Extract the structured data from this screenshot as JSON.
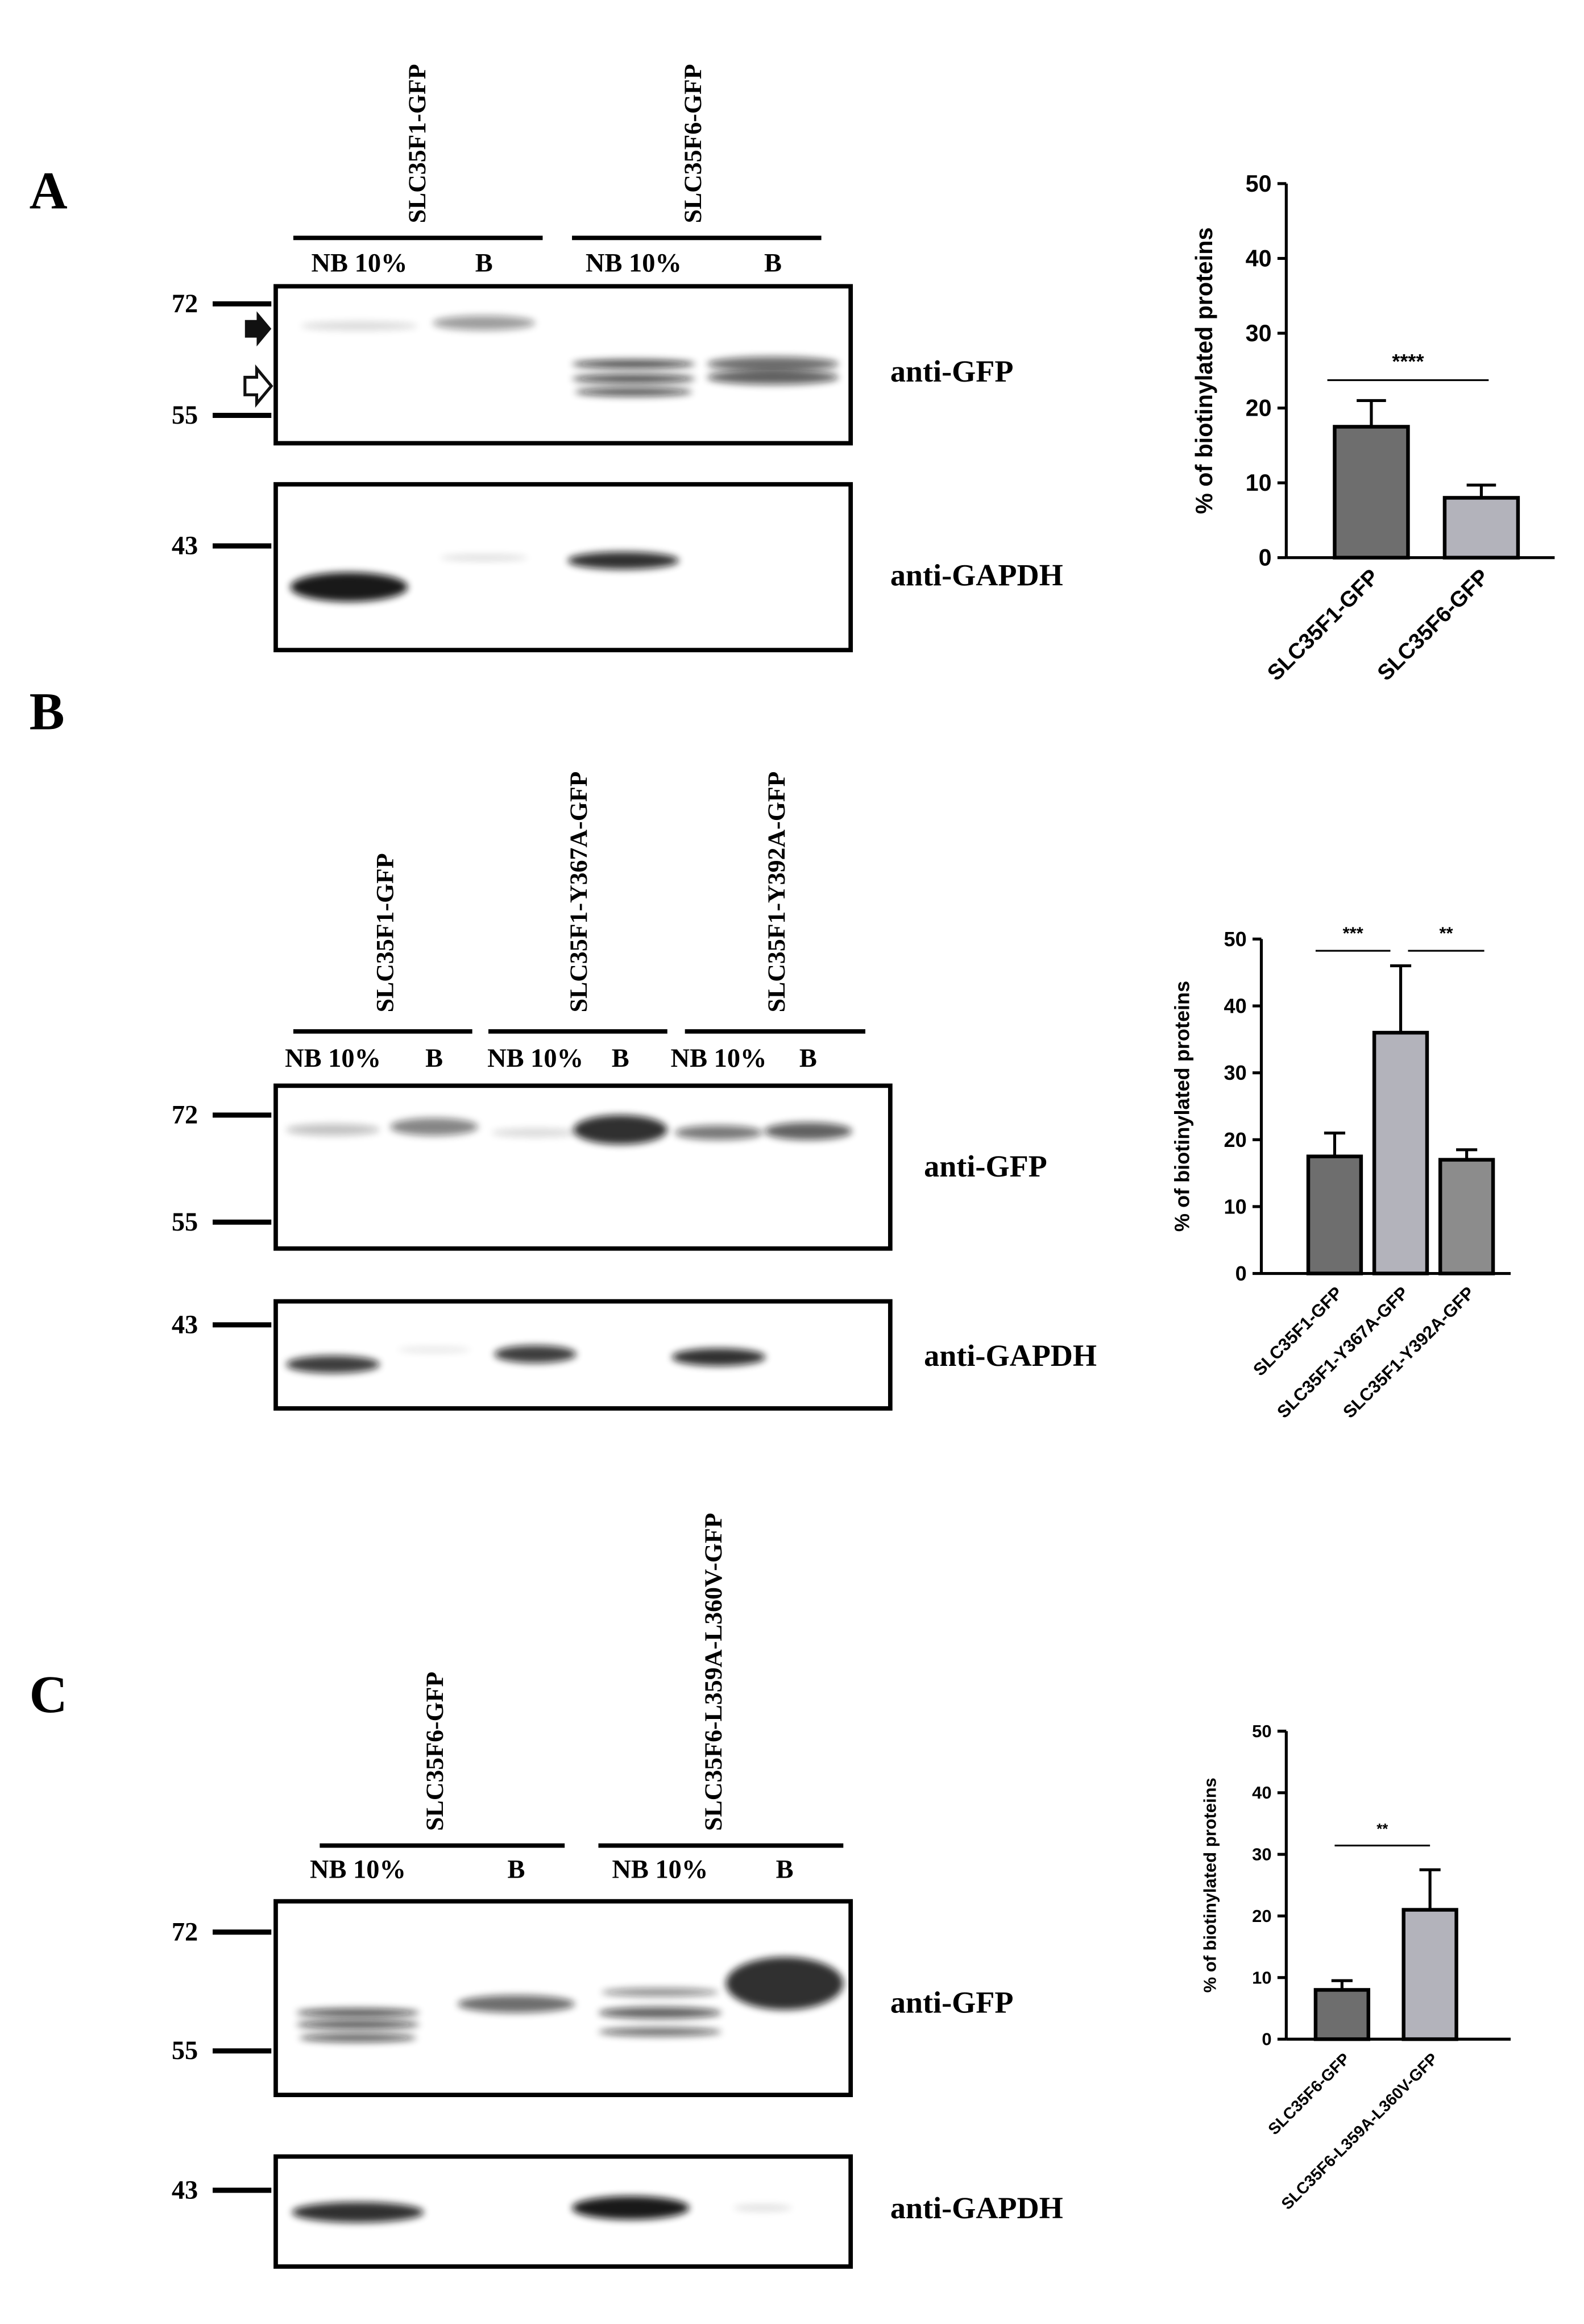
{
  "blots": [
    {
      "letter": "A",
      "samples": [
        "SLC35F1-GFP",
        "SLC35F6-GFP"
      ],
      "lanes": [
        "NB 10%",
        "B",
        "NB 10%",
        "B"
      ],
      "markers": [
        72,
        55,
        43
      ],
      "antibodies": [
        "anti-GFP",
        "anti-GAPDH"
      ]
    },
    {
      "letter": "B",
      "samples": [
        "SLC35F1-GFP",
        "SLC35F1-Y367A-GFP",
        "SLC35F1-Y392A-GFP"
      ],
      "lanes": [
        "NB 10%",
        "B",
        "NB 10%",
        "B",
        "NB 10%",
        "B"
      ],
      "markers": [
        72,
        55,
        43
      ],
      "antibodies": [
        "anti-GFP",
        "anti-GAPDH"
      ]
    },
    {
      "letter": "C",
      "samples": [
        "SLC35F6-GFP",
        "SLC35F6-L359A-L360V-GFP"
      ],
      "lanes": [
        "NB 10%",
        "B",
        "NB 10%",
        "B"
      ],
      "markers": [
        72,
        55,
        43
      ],
      "antibodies": [
        "anti-GFP",
        "anti-GAPDH"
      ]
    }
  ],
  "chart_data": [
    {
      "type": "bar",
      "y_label": "% of biotinylated proteins",
      "categories": [
        "SLC35F1-GFP",
        "SLC35F6-GFP"
      ],
      "values": [
        17.5,
        8
      ],
      "errors": [
        3.5,
        1.7
      ],
      "colors": [
        "#6e6e6e",
        "#b3b3bb"
      ],
      "ylim": [
        0,
        50
      ],
      "yticks": [
        0,
        10,
        20,
        30,
        40,
        50
      ],
      "significance": [
        "****"
      ]
    },
    {
      "type": "bar",
      "y_label": "% of biotinylated proteins",
      "categories": [
        "SLC35F1-GFP",
        "SLC35F1-Y367A-GFP",
        "SLC35F1-Y392A-GFP"
      ],
      "values": [
        17.5,
        36,
        17
      ],
      "errors": [
        3.5,
        10,
        1.5
      ],
      "colors": [
        "#6e6e6e",
        "#b3b3bb",
        "#8c8c8c"
      ],
      "ylim": [
        0,
        50
      ],
      "yticks": [
        0,
        10,
        20,
        30,
        40,
        50
      ],
      "significance": [
        "***",
        "**"
      ]
    },
    {
      "type": "bar",
      "y_label": "% of biotinylated proteins",
      "categories": [
        "SLC35F6-GFP",
        "SLC35F6-L359A-L360V-GFP"
      ],
      "values": [
        8,
        21
      ],
      "errors": [
        1.5,
        6.5
      ],
      "colors": [
        "#6e6e6e",
        "#b3b3bb"
      ],
      "ylim": [
        0,
        50
      ],
      "yticks": [
        0,
        10,
        20,
        30,
        40,
        50
      ],
      "significance": [
        "**"
      ]
    }
  ]
}
